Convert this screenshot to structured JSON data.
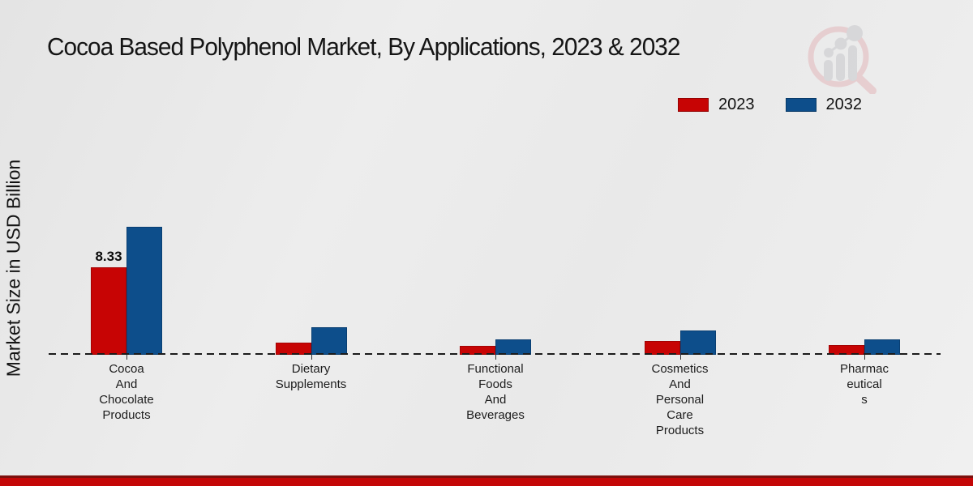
{
  "title": "Cocoa Based Polyphenol Market, By Applications, 2023 & 2032",
  "ylabel": "Market Size in USD Billion",
  "legend": [
    {
      "label": "2023",
      "color": "#c70404"
    },
    {
      "label": "2032",
      "color": "#0d4e8b"
    }
  ],
  "watermark_icon": "market-research-magnifier-logo",
  "footer": {
    "bar_color": "#c40606",
    "bar_top_color": "#7d100d"
  },
  "chart_data": {
    "type": "bar",
    "categories": [
      "Cocoa\nAnd\nChocolate\nProducts",
      "Dietary\nSupplements",
      "Functional\nFoods\nAnd\nBeverages",
      "Cosmetics\nAnd\nPersonal\nCare\nProducts",
      "Pharmac\neutical\ns"
    ],
    "series": [
      {
        "name": "2023",
        "color": "#c70404",
        "values": [
          8.33,
          1.15,
          0.85,
          1.35,
          0.95
        ],
        "labels": [
          "8.33",
          null,
          null,
          null,
          null
        ]
      },
      {
        "name": "2032",
        "color": "#0d4e8b",
        "values": [
          12.2,
          2.6,
          1.45,
          2.35,
          1.45
        ],
        "labels": [
          null,
          null,
          null,
          null,
          null
        ]
      }
    ],
    "title": "Cocoa Based Polyphenol Market, By Applications, 2023 & 2032",
    "xlabel": "",
    "ylabel": "Market Size in USD Billion",
    "ylim": [
      0,
      12.2
    ],
    "grid": false,
    "legend_position": "top-right",
    "baseline_style": "dashed"
  }
}
